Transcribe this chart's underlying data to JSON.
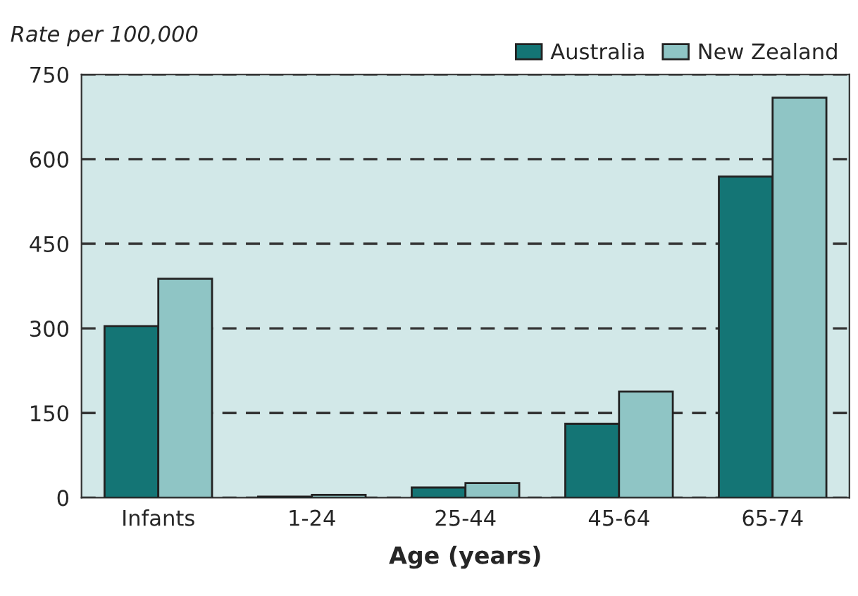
{
  "chart_data": {
    "type": "bar",
    "ylabel": "Rate per 100,000",
    "xlabel": "Age (years)",
    "categories": [
      "Infants",
      "1-24",
      "25-44",
      "45-64",
      "65-74"
    ],
    "series": [
      {
        "name": "Australia",
        "color": "#147575",
        "values": [
          304,
          2,
          18,
          131,
          569
        ]
      },
      {
        "name": "New Zealand",
        "color": "#8fc5c5",
        "values": [
          388,
          5,
          26,
          188,
          709
        ]
      }
    ],
    "ylim": [
      0,
      750
    ],
    "yticks": [
      0,
      150,
      300,
      450,
      600,
      750
    ],
    "grid": "y",
    "legend": "top right"
  }
}
